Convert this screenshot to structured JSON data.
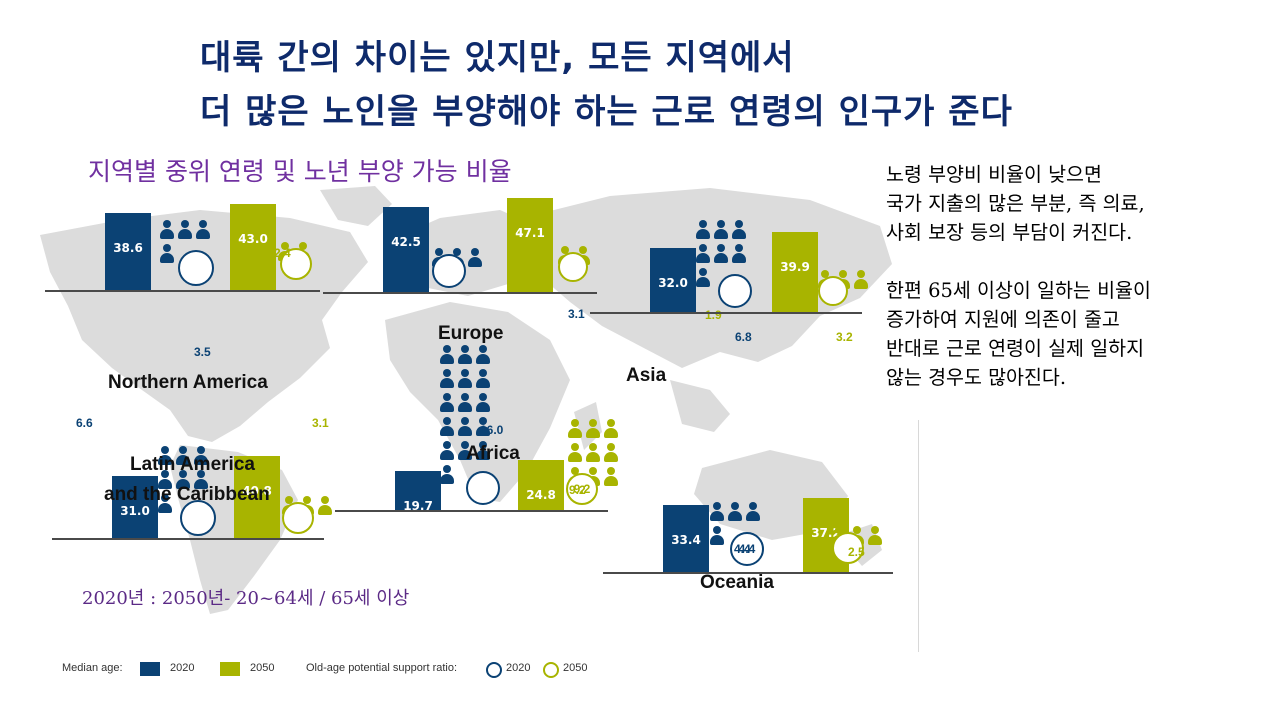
{
  "slide": {
    "title_line1": "대륙 간의 차이는 있지만, 모든 지역에서",
    "title_line2": "더 많은 노인을 부양해야 하는 근로 연령의 인구가 준다",
    "subtitle": "지역별 중위 연령 및 노년 부양 가능 비율",
    "notes": [
      "노령 부양비 비율이 낮으면",
      "국가 지출의 많은 부분, 즉 의료,",
      "사회 보장 등의 부담이 커진다.",
      "",
      "한편 65세 이상이 일하는 비율이",
      "증가하여 지원에 의존이 줄고",
      "반대로 근로 연령이 실제 일하지",
      "않는 경우도 많아진다."
    ],
    "caption": "2020년 : 2050년- 20~64세 / 65세 이상"
  },
  "colors": {
    "navy": "#0b4274",
    "olive": "#a8b400",
    "map": "#dcdcdc",
    "title": "#0e2a6b",
    "subtitle": "#7030a0"
  },
  "chart_data": {
    "type": "bar",
    "title": "",
    "series_meaning": {
      "median_age": "bar height",
      "support_ratio": "people icons and circle value"
    },
    "regions": [
      {
        "name": "Northern America",
        "median_age_2020": 38.6,
        "median_age_2050": 43.0,
        "support_ratio_2020": 3.5,
        "support_ratio_2050": 2.4,
        "ratio_2020_label": "3.5",
        "ratio_2050_label": "2.4",
        "age_2020_label": "38.6",
        "age_2050_label": "43.0"
      },
      {
        "name": "Europe",
        "median_age_2020": 42.5,
        "median_age_2050": 47.1,
        "support_ratio_2020": 3.1,
        "support_ratio_2050": 1.9,
        "ratio_2020_label": "3.1",
        "ratio_2050_label": "1.9",
        "age_2020_label": "42.5",
        "age_2050_label": "47.1"
      },
      {
        "name": "Asia",
        "median_age_2020": 32.0,
        "median_age_2050": 39.9,
        "support_ratio_2020": 6.8,
        "support_ratio_2050": 3.2,
        "ratio_2020_label": "6.8",
        "ratio_2050_label": "3.2",
        "age_2020_label": "32.0",
        "age_2050_label": "39.9"
      },
      {
        "name": "Latin America and the Caribbean",
        "median_age_2020": 31.0,
        "median_age_2050": 40.8,
        "support_ratio_2020": 6.6,
        "support_ratio_2050": 3.1,
        "ratio_2020_label": "6.6",
        "ratio_2050_label": "3.1",
        "age_2020_label": "31.0",
        "age_2050_label": "40.8"
      },
      {
        "name": "Africa",
        "median_age_2020": 19.7,
        "median_age_2050": 24.8,
        "support_ratio_2020": 16.0,
        "support_ratio_2050": 9.2,
        "ratio_2020_label": "16.0",
        "ratio_2050_label": "9.2",
        "age_2020_label": "19.7",
        "age_2050_label": "24.8"
      },
      {
        "name": "Oceania",
        "median_age_2020": 33.4,
        "median_age_2050": 37.2,
        "support_ratio_2020": 4.4,
        "support_ratio_2050": 2.5,
        "ratio_2020_label": "4.4",
        "ratio_2050_label": "2.5",
        "age_2020_label": "33.4",
        "age_2050_label": "37.2"
      }
    ],
    "legend": {
      "median_age_label": "Median age:",
      "year_2020": "2020",
      "year_2050": "2050",
      "support_label": "Old-age potential support ratio:"
    }
  }
}
